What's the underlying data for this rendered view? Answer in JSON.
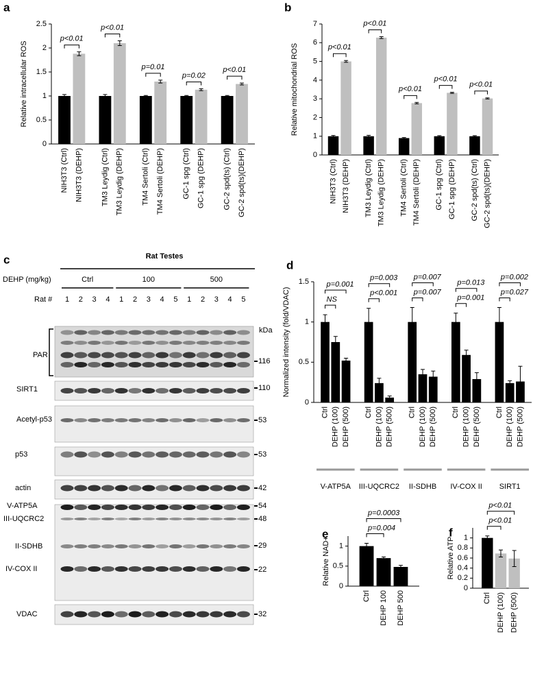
{
  "chart_data": [
    {
      "type": "bar",
      "panel": "a",
      "ylabel": "Relative intracellular ROS",
      "categories": [
        "NIH3T3 (Ctrl)",
        "NIH3T3 (DEHP)",
        "TM3 Leydig (Ctrl)",
        "TM3 Leydig (DEHP)",
        "TM4 Sertoli (Ctrl)",
        "TM4 Sertoli (DEHP)",
        "GC-1 spg (Ctrl)",
        "GC-1 spg (DEHP)",
        "GC-2 spd(ts) (Ctrl)",
        "GC-2 spd(ts)(DEHP)"
      ],
      "values": [
        1.0,
        1.88,
        1.0,
        2.1,
        1.0,
        1.3,
        1.0,
        1.13,
        1.0,
        1.25
      ],
      "errors": [
        0.03,
        0.04,
        0.03,
        0.05,
        0.01,
        0.03,
        0.01,
        0.02,
        0.01,
        0.02
      ],
      "colors": [
        "#000000",
        "#bfbfbf"
      ],
      "ylim": [
        0,
        2.5
      ],
      "yticks": [
        0,
        0.5,
        1,
        1.5,
        2,
        2.5
      ],
      "annotations": [
        "p<0.01",
        "p<0.01",
        "p=0.01",
        "p=0.02",
        "p<0.01"
      ]
    },
    {
      "type": "bar",
      "panel": "b",
      "ylabel": "Relative mitochondrial  ROS",
      "categories": [
        "NIH3T3 (Ctrl)",
        "NIH3T3 (DEHP)",
        "TM3 Leydig (Ctrl)",
        "TM3 Leydig (DEHP)",
        "TM4 Sertoli (Ctrl)",
        "TM4 Sertoli (DEHP)",
        "GC-1 spg (Ctrl)",
        "GC-1 spg (DEHP)",
        "GC-2 spd(ts) (Ctrl)",
        "GC-2 spd(ts)(DEHP)"
      ],
      "values": [
        1.0,
        5.0,
        1.0,
        6.27,
        0.9,
        2.77,
        1.0,
        3.32,
        1.0,
        3.02
      ],
      "errors": [
        0.04,
        0.05,
        0.05,
        0.05,
        0.03,
        0.04,
        0.03,
        0.03,
        0.03,
        0.03
      ],
      "colors": [
        "#000000",
        "#bfbfbf"
      ],
      "ylim": [
        0,
        7
      ],
      "yticks": [
        0,
        1,
        2,
        3,
        4,
        5,
        6,
        7
      ],
      "annotations": [
        "p<0.01",
        "p<0.01",
        "p<0.01",
        "p<0.01",
        "p<0.01"
      ]
    },
    {
      "type": "bar",
      "panel": "d",
      "ylabel": "Normalized intensity (fold/VDAC)",
      "categories": [
        "Ctrl",
        "DEHP (100)",
        "DEHP (500)",
        "Ctrl",
        "DEHP (100)",
        "DEHP (500)",
        "Ctrl",
        "DEHP (100)",
        "DEHP (500)",
        "Ctrl",
        "DEHP (100)",
        "DEHP (500)",
        "Ctrl",
        "DEHP (100)",
        "DEHP (500)"
      ],
      "group_labels": [
        "V-ATP5A",
        "III-UQCRC2",
        "II-SDHB",
        "IV-COX II",
        "SIRT1"
      ],
      "values": [
        1.0,
        0.75,
        0.52,
        1.0,
        0.24,
        0.06,
        1.0,
        0.35,
        0.32,
        1.0,
        0.59,
        0.29,
        1.0,
        0.24,
        0.26
      ],
      "errors": [
        0.09,
        0.07,
        0.03,
        0.17,
        0.06,
        0.02,
        0.18,
        0.06,
        0.07,
        0.11,
        0.06,
        0.08,
        0.18,
        0.03,
        0.19
      ],
      "colors": [
        "#000000"
      ],
      "ylim": [
        0,
        1.5
      ],
      "yticks": [
        0,
        0.5,
        1,
        1.5
      ],
      "annotations": [
        "p=0.001",
        "NS",
        "p=0.003",
        "p<0.001",
        "p=0.007",
        "p=0.007",
        "p=0.013",
        "p=0.001",
        "p=0.002",
        "p=0.027"
      ]
    },
    {
      "type": "bar",
      "panel": "e",
      "ylabel": "Relative NAD+",
      "categories": [
        "Ctrl",
        "DEHP 100",
        "DEHP 500"
      ],
      "values": [
        1.0,
        0.7,
        0.48
      ],
      "errors": [
        0.07,
        0.03,
        0.04
      ],
      "colors": [
        "#000000"
      ],
      "ylim": [
        0,
        1.25
      ],
      "yticks": [
        0,
        0.5,
        1
      ],
      "annotations": [
        "p=0.0003",
        "p=0.004"
      ]
    },
    {
      "type": "bar",
      "panel": "f",
      "ylabel": "Relative ATP",
      "categories": [
        "Ctrl",
        "DEHP (100)",
        "DEHP (500)"
      ],
      "values": [
        1.0,
        0.69,
        0.59
      ],
      "errors": [
        0.04,
        0.07,
        0.16
      ],
      "colors": [
        "#000000",
        "#bfbfbf",
        "#bfbfbf"
      ],
      "ylim": [
        0,
        1.2
      ],
      "yticks": [
        0,
        0.2,
        0.4,
        0.6,
        0.8,
        1
      ],
      "annotations": [
        "p<0.01",
        "p<0.01"
      ]
    }
  ],
  "blot": {
    "panel": "c",
    "title": "Rat Testes",
    "dose_label": "DEHP (mg/kg)",
    "groups": [
      "Ctrl",
      "100",
      "500"
    ],
    "lane_label": "Rat #",
    "lanes": [
      "1",
      "2",
      "3",
      "4",
      "1",
      "2",
      "3",
      "4",
      "5",
      "1",
      "2",
      "3",
      "4",
      "5"
    ],
    "unit": "kDa",
    "labels": [
      "PAR",
      "SIRT1",
      "Acetyl-p53",
      "p53",
      "actin",
      "V-ATP5A",
      "III-UQCRC2",
      "II-SDHB",
      "IV-COX II",
      "VDAC"
    ],
    "markers": [
      "116",
      "110",
      "53",
      "53",
      "42",
      "54",
      "48",
      "29",
      "22",
      "32"
    ]
  }
}
